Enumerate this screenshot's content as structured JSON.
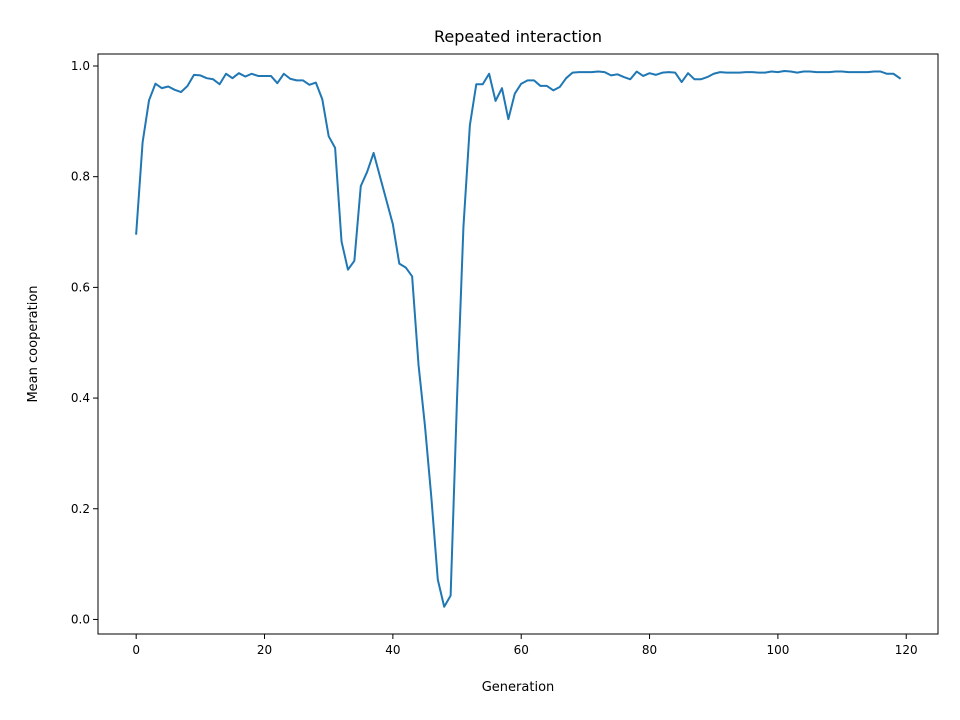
{
  "chart_data": {
    "type": "line",
    "title": "Repeated interaction",
    "xlabel": "Generation",
    "ylabel": "Mean cooperation",
    "xlim": [
      -5.95,
      124.95
    ],
    "ylim": [
      -0.0263,
      1.0217
    ],
    "xticks": [
      0,
      20,
      40,
      60,
      80,
      100,
      120
    ],
    "yticks": [
      0.0,
      0.2,
      0.4,
      0.6,
      0.8,
      1.0
    ],
    "xtick_labels": [
      "0",
      "20",
      "40",
      "60",
      "80",
      "100",
      "120"
    ],
    "ytick_labels": [
      "0.0",
      "0.2",
      "0.4",
      "0.6",
      "0.8",
      "1.0"
    ],
    "grid": false,
    "series": [
      {
        "color": "#1f77b4",
        "x": [
          0,
          1,
          2,
          3,
          4,
          5,
          6,
          7,
          8,
          9,
          10,
          11,
          12,
          13,
          14,
          15,
          16,
          17,
          18,
          19,
          20,
          21,
          22,
          23,
          24,
          25,
          26,
          27,
          28,
          29,
          30,
          31,
          32,
          33,
          34,
          35,
          36,
          37,
          38,
          39,
          40,
          41,
          42,
          43,
          44,
          45,
          46,
          47,
          48,
          49,
          50,
          51,
          52,
          53,
          54,
          55,
          56,
          57,
          58,
          59,
          60,
          61,
          62,
          63,
          64,
          65,
          66,
          67,
          68,
          69,
          70,
          71,
          72,
          73,
          74,
          75,
          76,
          77,
          78,
          79,
          80,
          81,
          82,
          83,
          84,
          85,
          86,
          87,
          88,
          89,
          90,
          91,
          92,
          93,
          94,
          95,
          96,
          97,
          98,
          99,
          100,
          101,
          102,
          103,
          104,
          105,
          106,
          107,
          108,
          109,
          110,
          111,
          112,
          113,
          114,
          115,
          116,
          117,
          118,
          119
        ],
        "y": [
          0.697,
          0.862,
          0.938,
          0.968,
          0.96,
          0.963,
          0.957,
          0.953,
          0.964,
          0.984,
          0.983,
          0.978,
          0.976,
          0.967,
          0.986,
          0.978,
          0.987,
          0.981,
          0.986,
          0.982,
          0.982,
          0.982,
          0.969,
          0.986,
          0.977,
          0.974,
          0.974,
          0.966,
          0.97,
          0.94,
          0.873,
          0.852,
          0.683,
          0.632,
          0.648,
          0.783,
          0.809,
          0.843,
          0.8,
          0.757,
          0.714,
          0.643,
          0.636,
          0.62,
          0.46,
          0.35,
          0.22,
          0.072,
          0.023,
          0.043,
          0.4,
          0.71,
          0.893,
          0.967,
          0.967,
          0.986,
          0.937,
          0.96,
          0.904,
          0.95,
          0.968,
          0.974,
          0.974,
          0.964,
          0.964,
          0.956,
          0.962,
          0.978,
          0.988,
          0.989,
          0.989,
          0.989,
          0.99,
          0.989,
          0.983,
          0.985,
          0.98,
          0.976,
          0.99,
          0.982,
          0.987,
          0.984,
          0.988,
          0.989,
          0.988,
          0.971,
          0.987,
          0.976,
          0.976,
          0.98,
          0.986,
          0.989,
          0.988,
          0.988,
          0.988,
          0.989,
          0.989,
          0.988,
          0.988,
          0.99,
          0.989,
          0.991,
          0.99,
          0.988,
          0.99,
          0.99,
          0.989,
          0.989,
          0.989,
          0.99,
          0.99,
          0.989,
          0.989,
          0.989,
          0.989,
          0.99,
          0.99,
          0.986,
          0.986,
          0.978
        ]
      }
    ]
  }
}
